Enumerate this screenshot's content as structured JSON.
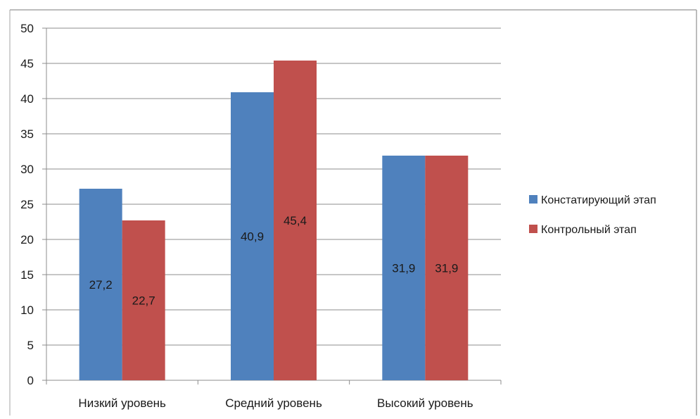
{
  "chart_data": {
    "type": "bar",
    "categories": [
      "Низкий уровень",
      "Средний уровень",
      "Высокий уровень"
    ],
    "series": [
      {
        "name": "Констатирующий этап",
        "values": [
          27.2,
          40.9,
          31.9
        ],
        "labels": [
          "27,2",
          "40,9",
          "31,9"
        ],
        "color": "#4f81bd"
      },
      {
        "name": "Контрольный этап",
        "values": [
          22.7,
          45.4,
          31.9
        ],
        "labels": [
          "22,7",
          "45,4",
          "31,9"
        ],
        "color": "#c0504d"
      }
    ],
    "ylim": [
      0,
      50
    ],
    "yticks": [
      "0",
      "5",
      "10",
      "15",
      "20",
      "25",
      "30",
      "35",
      "40",
      "45",
      "50"
    ],
    "grid": true,
    "legend_position": "right",
    "title": "",
    "xlabel": "",
    "ylabel": ""
  },
  "colors": {
    "gridline": "#8c8c8c",
    "axis": "#8c8c8c",
    "frame": "#a6a6a6"
  }
}
